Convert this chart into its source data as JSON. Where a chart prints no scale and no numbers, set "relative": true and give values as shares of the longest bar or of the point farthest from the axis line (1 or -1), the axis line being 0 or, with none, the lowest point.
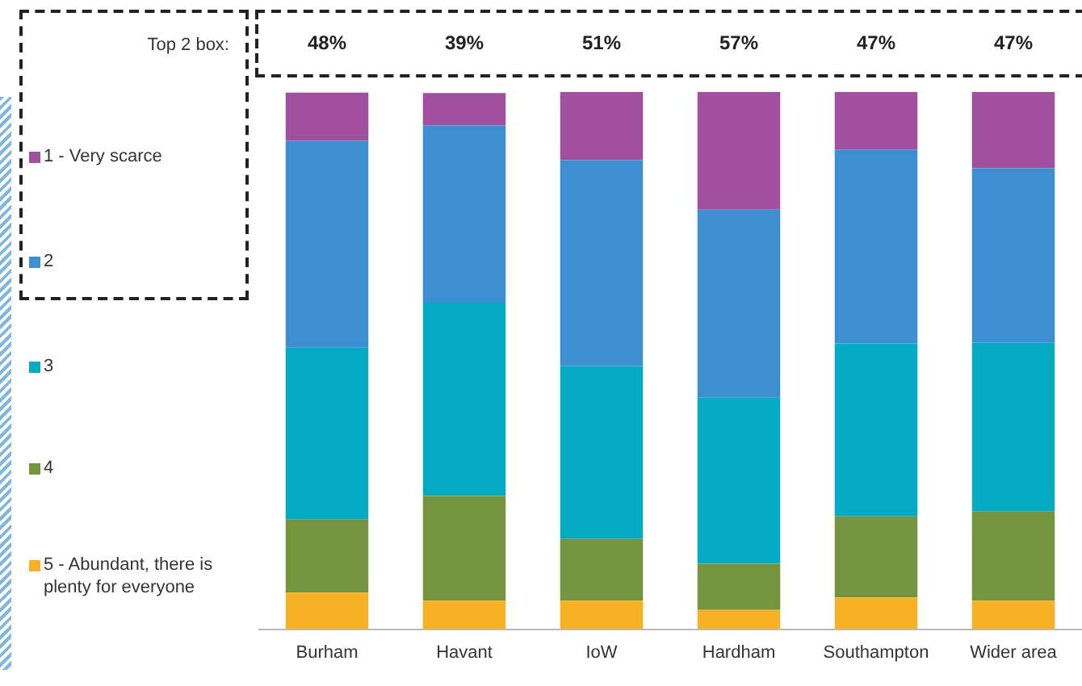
{
  "chart_data": {
    "type": "bar",
    "stacked": true,
    "relative": true,
    "legend": "left",
    "categories": [
      "Burham",
      "Havant",
      "IoW",
      "Hardham",
      "Southampton",
      "Wider area"
    ],
    "series": [
      {
        "name": "5 - Abundant, there is plenty for everyone",
        "color": "#f7b125",
        "values": [
          0.068,
          0.053,
          0.053,
          0.036,
          0.059,
          0.053
        ]
      },
      {
        "name": "4",
        "color": "#74953d",
        "values": [
          0.136,
          0.195,
          0.115,
          0.086,
          0.151,
          0.166
        ]
      },
      {
        "name": "3",
        "color": "#05abc4",
        "values": [
          0.32,
          0.36,
          0.322,
          0.309,
          0.322,
          0.314
        ]
      },
      {
        "name": "2",
        "color": "#3e8ed2",
        "values": [
          0.385,
          0.33,
          0.383,
          0.35,
          0.361,
          0.325
        ]
      },
      {
        "name": "1 - Very scarce",
        "color": "#a0509f",
        "values": [
          0.09,
          0.06,
          0.127,
          0.219,
          0.107,
          0.142
        ]
      }
    ],
    "annotations": [
      "Top 2 box:",
      "48%",
      "39%",
      "51%",
      "57%",
      "47%",
      "47%"
    ]
  }
}
